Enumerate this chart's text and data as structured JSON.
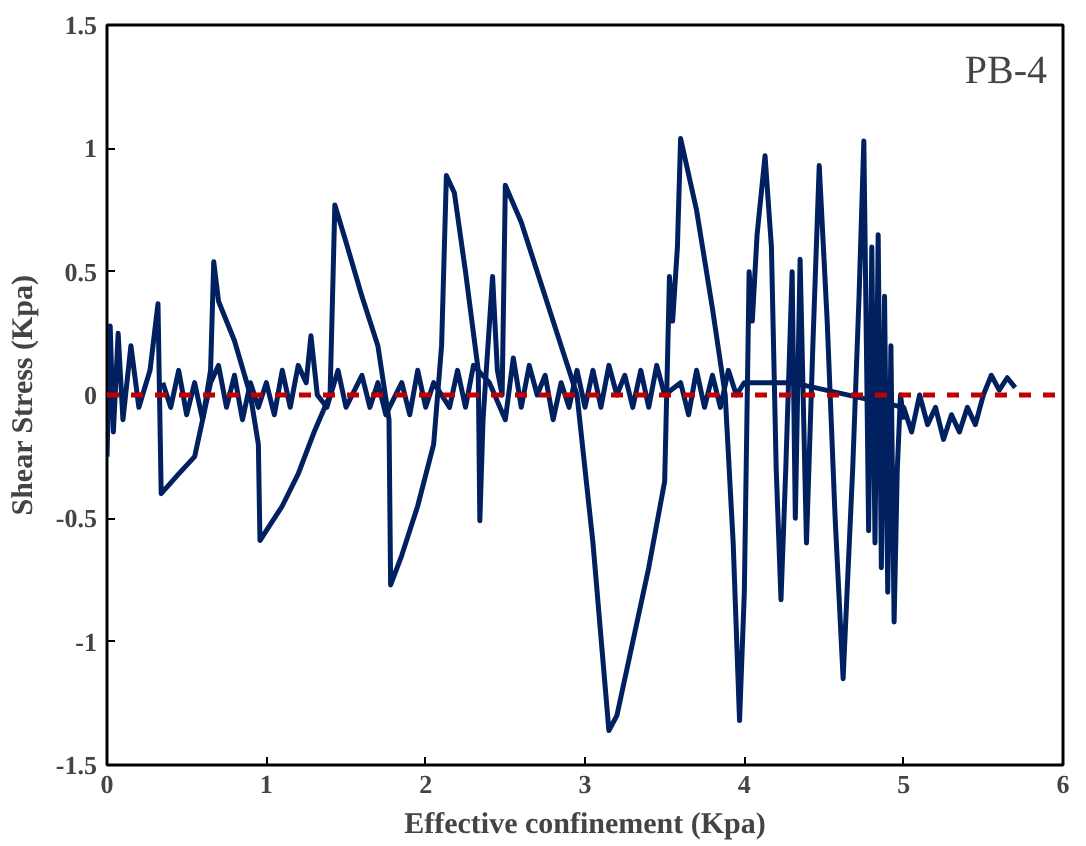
{
  "chart_data": {
    "type": "line",
    "xlabel": "Effective confinement (Kpa)",
    "ylabel": "Shear Stress (Kpa)",
    "annotations": [
      "PB-4"
    ],
    "xlim": [
      0,
      6
    ],
    "xticks": [
      0,
      1,
      2,
      3,
      4,
      5,
      6
    ],
    "ylim": [
      -1.5,
      1.5
    ],
    "yticks": [
      -1.5,
      -1,
      -0.5,
      0,
      0.5,
      1,
      1.5
    ],
    "grid": false,
    "marker": "none",
    "line_style": "solid",
    "ref_lines": [
      {
        "axis": "y",
        "value": 0,
        "color": "#c00000",
        "line_style": "dashed"
      }
    ],
    "series": [
      {
        "color": "#002060",
        "x": [
          0,
          0.02,
          0.04,
          0.07,
          0.1,
          0.15,
          0.2,
          0.27,
          0.32,
          0.34,
          0.45,
          0.55,
          0.6,
          0.65,
          0.67,
          0.7,
          0.8,
          0.9,
          0.95,
          0.96,
          1.0,
          1.1,
          1.2,
          1.3,
          1.4,
          1.43,
          1.5,
          1.6,
          1.7,
          1.77,
          1.78,
          1.85,
          1.95,
          2.05,
          2.1,
          2.13,
          2.18,
          2.25,
          2.33,
          2.34,
          2.36,
          2.42,
          2.45,
          2.48,
          2.5,
          2.6,
          2.7,
          2.85,
          2.95,
          3.05,
          3.15,
          3.2,
          3.3,
          3.4,
          3.5,
          3.53,
          3.55,
          3.58,
          3.6,
          3.7,
          3.8,
          3.88,
          3.93,
          3.97,
          4.0,
          4.03,
          4.05,
          4.08,
          4.13,
          4.17,
          4.2,
          4.23,
          4.26,
          4.3,
          4.32,
          4.35,
          4.39,
          4.43,
          4.47,
          4.52,
          4.57,
          4.62,
          4.68,
          4.72,
          4.75,
          4.77,
          4.78,
          4.8,
          4.82,
          4.84,
          4.86,
          4.88,
          4.9,
          4.92,
          4.94,
          4.96,
          4.98,
          5.0
        ],
        "values": [
          -0.25,
          0.28,
          -0.15,
          0.25,
          -0.1,
          0.2,
          -0.05,
          0.1,
          0.37,
          -0.4,
          -0.32,
          -0.25,
          -0.1,
          0.1,
          0.54,
          0.38,
          0.22,
          0.0,
          -0.2,
          -0.59,
          -0.55,
          -0.45,
          -0.32,
          -0.15,
          0.0,
          0.77,
          0.62,
          0.4,
          0.2,
          -0.1,
          -0.77,
          -0.65,
          -0.45,
          -0.2,
          0.2,
          0.89,
          0.82,
          0.5,
          0.1,
          -0.51,
          -0.1,
          0.48,
          0.1,
          0.0,
          0.85,
          0.7,
          0.5,
          0.2,
          0.0,
          -0.6,
          -1.36,
          -1.3,
          -1.0,
          -0.7,
          -0.35,
          0.48,
          0.3,
          0.6,
          1.04,
          0.75,
          0.35,
          0.0,
          -0.6,
          -1.32,
          -0.8,
          0.5,
          0.3,
          0.65,
          0.97,
          0.6,
          -0.3,
          -0.83,
          -0.3,
          0.5,
          -0.5,
          0.55,
          -0.6,
          0.2,
          0.93,
          0.3,
          -0.5,
          -1.15,
          -0.3,
          0.4,
          1.03,
          0.0,
          -0.55,
          0.6,
          -0.6,
          0.65,
          -0.7,
          0.4,
          -0.8,
          0.2,
          -0.92,
          -0.3,
          0.0,
          -0.1
        ]
      },
      {
        "color": "#002060",
        "x": [
          0.35,
          0.4,
          0.45,
          0.5,
          0.55,
          0.6,
          0.65,
          0.7,
          0.75,
          0.8,
          0.85,
          0.9,
          0.95,
          1.0,
          1.05,
          1.1,
          1.15,
          1.2,
          1.25,
          1.28,
          1.32,
          1.38,
          1.45,
          1.5,
          1.6,
          1.65,
          1.7,
          1.75,
          1.85,
          1.9,
          1.95,
          2.0,
          2.05,
          2.15,
          2.2,
          2.25,
          2.3,
          2.4,
          2.5,
          2.55,
          2.6,
          2.65,
          2.7,
          2.75,
          2.8,
          2.85,
          2.9,
          2.95,
          3.0,
          3.05,
          3.1,
          3.15,
          3.2,
          3.25,
          3.3,
          3.35,
          3.4,
          3.45,
          3.5,
          3.6,
          3.65,
          3.7,
          3.75,
          3.8,
          3.85,
          3.9,
          3.95,
          4.0,
          4.3,
          5.0,
          5.05,
          5.1,
          5.15,
          5.2,
          5.25,
          5.3,
          5.35,
          5.4,
          5.45,
          5.5,
          5.55,
          5.6,
          5.65,
          5.7
        ],
        "values": [
          0.05,
          -0.05,
          0.1,
          -0.08,
          0.05,
          -0.1,
          0.05,
          0.12,
          -0.05,
          0.08,
          -0.1,
          0.05,
          -0.05,
          0.05,
          -0.08,
          0.1,
          -0.05,
          0.12,
          0.05,
          0.24,
          0.0,
          -0.05,
          0.1,
          -0.05,
          0.08,
          -0.05,
          0.05,
          -0.08,
          0.05,
          -0.08,
          0.1,
          -0.05,
          0.05,
          -0.05,
          0.1,
          -0.05,
          0.12,
          0.05,
          -0.1,
          0.15,
          -0.05,
          0.12,
          0.0,
          0.08,
          -0.1,
          0.05,
          -0.05,
          0.1,
          -0.05,
          0.1,
          -0.05,
          0.12,
          0.0,
          0.08,
          -0.05,
          0.1,
          -0.05,
          0.12,
          0.0,
          0.05,
          -0.08,
          0.1,
          -0.05,
          0.08,
          -0.05,
          0.1,
          0.0,
          0.05,
          0.05,
          -0.05,
          -0.15,
          0.0,
          -0.12,
          -0.05,
          -0.18,
          -0.08,
          -0.15,
          -0.05,
          -0.12,
          0.0,
          0.08,
          0.02,
          0.07,
          0.03
        ]
      }
    ]
  }
}
